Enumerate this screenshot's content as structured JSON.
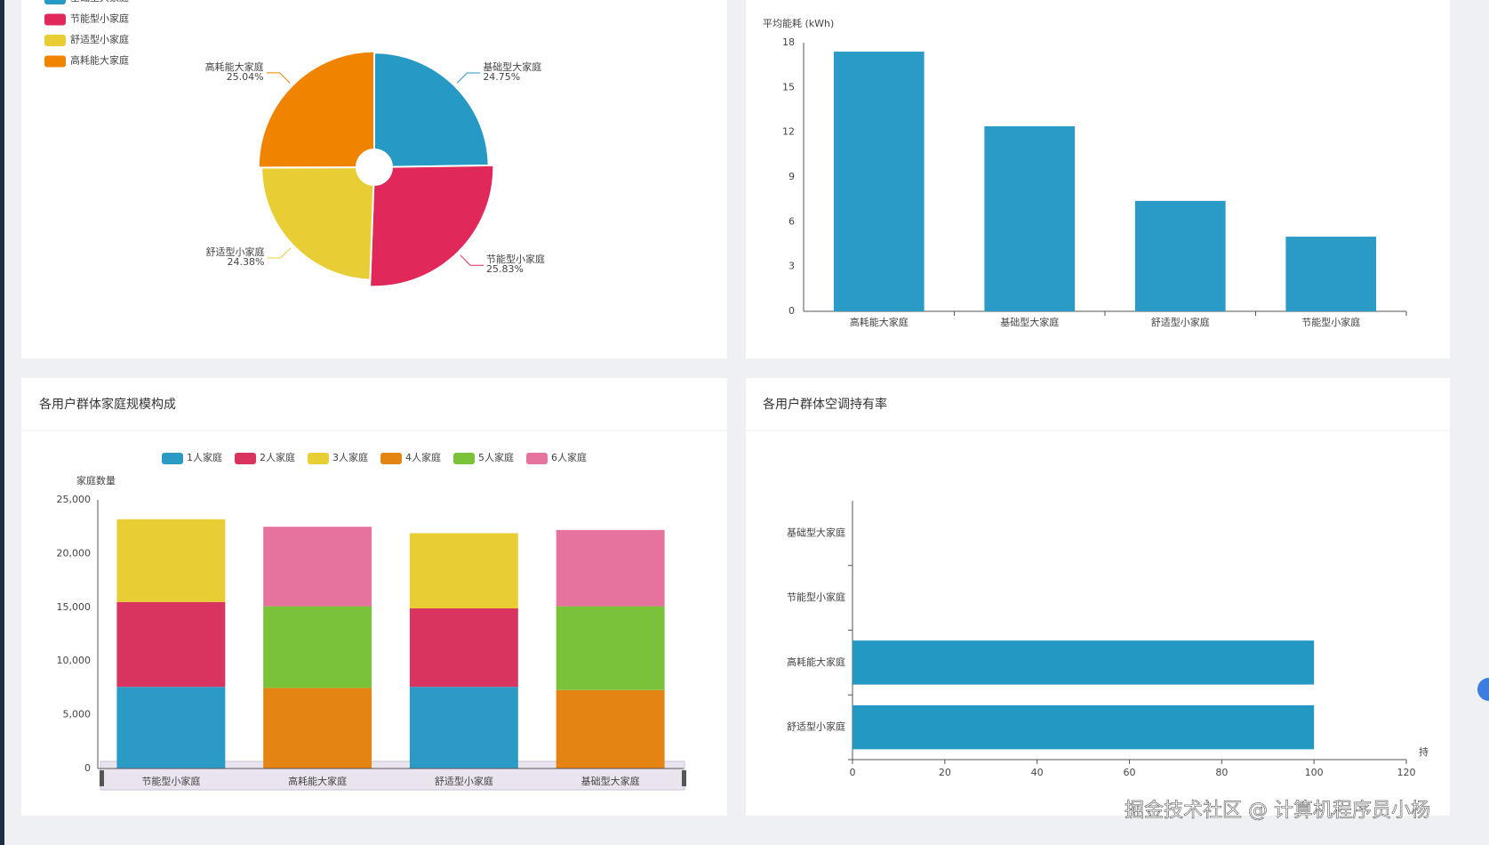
{
  "chart_data": [
    {
      "type": "pie",
      "categories": [
        "基础型大家庭",
        "节能型小家庭",
        "舒适型小家庭",
        "高耗能大家庭"
      ],
      "values": [
        24.75,
        25.83,
        24.38,
        25.04
      ],
      "value_labels": [
        "24.75%",
        "25.83%",
        "24.38%",
        "25.04%"
      ],
      "colors": [
        "#2699c4",
        "#e0285a",
        "#e8cd35",
        "#f08400"
      ]
    },
    {
      "type": "bar",
      "y_label": "平均能耗 (kWh)",
      "categories": [
        "高耗能大家庭",
        "基础型大家庭",
        "舒适型小家庭",
        "节能型小家庭"
      ],
      "values": [
        17.4,
        12.4,
        7.4,
        5.0
      ],
      "color": "#2a9ac6",
      "ylim": [
        0,
        18
      ],
      "yticks": [
        0,
        3,
        6,
        9,
        12,
        15,
        18
      ]
    },
    {
      "type": "stacked_bar",
      "title": "各用户群体家庭规模构成",
      "y_label": "家庭数量",
      "categories": [
        "节能型小家庭",
        "高耗能大家庭",
        "舒适型小家庭",
        "基础型大家庭"
      ],
      "series": [
        {
          "name": "1人家庭",
          "color": "#2b9bc6",
          "values": [
            7600,
            0,
            7600,
            0
          ]
        },
        {
          "name": "2人家庭",
          "color": "#d9335f",
          "values": [
            7900,
            0,
            7300,
            0
          ]
        },
        {
          "name": "3人家庭",
          "color": "#e8cd35",
          "values": [
            7700,
            0,
            7000,
            0
          ]
        },
        {
          "name": "4人家庭",
          "color": "#e48412",
          "values": [
            0,
            7500,
            0,
            7300
          ]
        },
        {
          "name": "5人家庭",
          "color": "#79c23a",
          "values": [
            0,
            7600,
            0,
            7800
          ]
        },
        {
          "name": "6人家庭",
          "color": "#e6729e",
          "values": [
            0,
            7400,
            0,
            7100
          ]
        }
      ],
      "ylim": [
        0,
        25000
      ],
      "yticks": [
        0,
        {
          "value": 5000,
          "label": "5,000"
        },
        {
          "value": 10000,
          "label": "10,000"
        },
        {
          "value": 15000,
          "label": "15,000"
        },
        {
          "value": 20000,
          "label": "20,000"
        },
        {
          "value": 25000,
          "label": "25,000"
        }
      ]
    },
    {
      "type": "horizontal_bar",
      "title": "各用户群体空调持有率",
      "x_label": "持",
      "categories": [
        "舒适型小家庭",
        "高耗能大家庭",
        "节能型小家庭",
        "基础型大家庭"
      ],
      "values": [
        100,
        100,
        0,
        0
      ],
      "color": "#2398c3",
      "xlim": [
        0,
        120
      ],
      "xticks": [
        0,
        20,
        40,
        60,
        80,
        100,
        120
      ]
    }
  ],
  "watermark": "掘金技术社区 @ 计算机程序员小杨"
}
